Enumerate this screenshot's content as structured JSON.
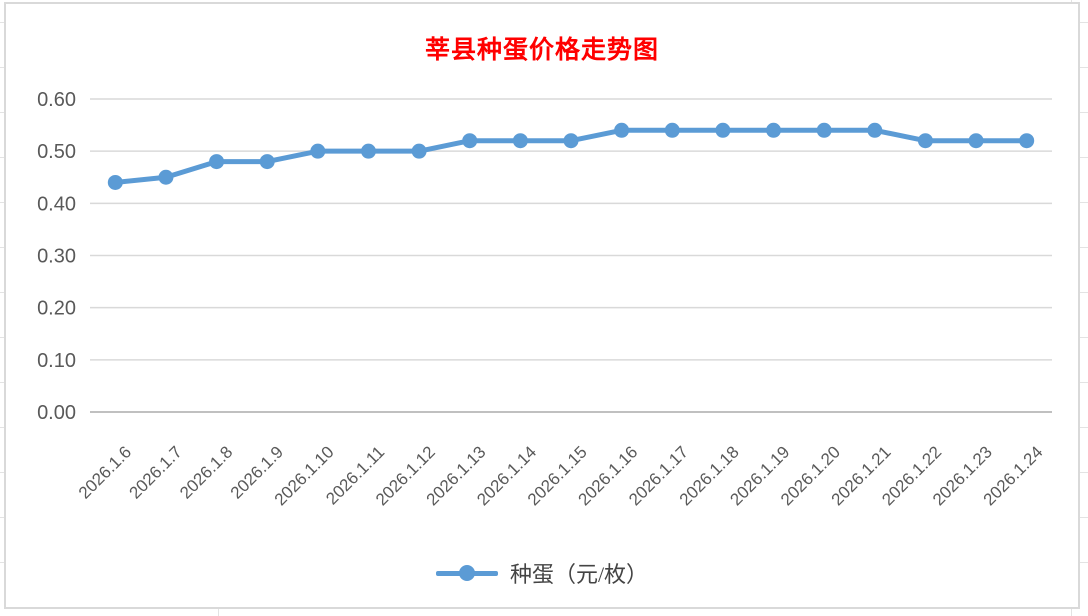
{
  "chart_data": {
    "type": "line",
    "title": "莘县种蛋价格走势图",
    "title_color": "#ff0000",
    "categories": [
      "2026.1.6",
      "2026.1.7",
      "2026.1.8",
      "2026.1.9",
      "2026.1.10",
      "2026.1.11",
      "2026.1.12",
      "2026.1.13",
      "2026.1.14",
      "2026.1.15",
      "2026.1.16",
      "2026.1.17",
      "2026.1.18",
      "2026.1.19",
      "2026.1.20",
      "2026.1.21",
      "2026.1.22",
      "2026.1.23",
      "2026.1.24"
    ],
    "series": [
      {
        "name": "种蛋（元/枚）",
        "values": [
          0.44,
          0.45,
          0.48,
          0.48,
          0.5,
          0.5,
          0.5,
          0.52,
          0.52,
          0.52,
          0.54,
          0.54,
          0.54,
          0.54,
          0.54,
          0.54,
          0.52,
          0.52,
          0.52
        ],
        "color": "#5b9bd5"
      }
    ],
    "xlabel": "",
    "ylabel": "",
    "ylim": [
      0.0,
      0.6
    ],
    "y_ticks": [
      "0.00",
      "0.10",
      "0.20",
      "0.30",
      "0.40",
      "0.50",
      "0.60"
    ],
    "grid": true,
    "legend_position": "bottom",
    "gridline_color": "#d9d9d9",
    "axis_line_color": "#c0c0c0",
    "axis_text_color": "#595959"
  }
}
